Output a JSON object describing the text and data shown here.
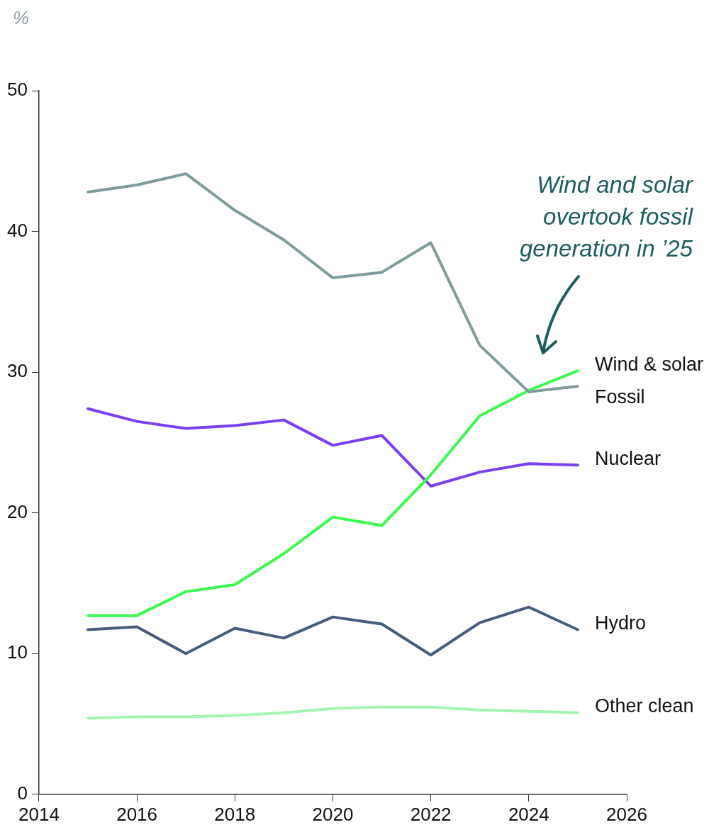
{
  "chart_data": {
    "type": "line",
    "ylabel": "%",
    "x": [
      2015,
      2016,
      2017,
      2018,
      2019,
      2020,
      2021,
      2022,
      2023,
      2024,
      2025
    ],
    "xlim": [
      2014,
      2026
    ],
    "xticks": [
      2014,
      2016,
      2018,
      2020,
      2022,
      2024,
      2026
    ],
    "ylim": [
      0,
      50
    ],
    "yticks": [
      0,
      10,
      20,
      30,
      40,
      50
    ],
    "marker": "none",
    "series": [
      {
        "name": "Fossil",
        "color": "#7f9c9c",
        "values": [
          42.8,
          43.3,
          44.1,
          41.5,
          39.4,
          36.7,
          37.1,
          39.2,
          31.9,
          28.6,
          29.0
        ]
      },
      {
        "name": "Wind & solar",
        "color": "#3cf850",
        "values": [
          12.7,
          12.7,
          14.4,
          14.9,
          17.1,
          19.7,
          19.1,
          22.7,
          26.9,
          28.7,
          30.1
        ]
      },
      {
        "name": "Nuclear",
        "color": "#7b3ff2",
        "values": [
          27.4,
          26.5,
          26.0,
          26.2,
          26.6,
          24.8,
          25.5,
          21.9,
          22.9,
          23.5,
          23.4
        ]
      },
      {
        "name": "Hydro",
        "color": "#475d7e",
        "values": [
          11.7,
          11.9,
          10.0,
          11.8,
          11.1,
          12.6,
          12.1,
          9.9,
          12.2,
          13.3,
          11.7
        ]
      },
      {
        "name": "Other clean",
        "color": "#a3f5b0",
        "values": [
          5.4,
          5.5,
          5.5,
          5.6,
          5.8,
          6.1,
          6.2,
          6.2,
          6.0,
          5.9,
          5.8
        ]
      }
    ],
    "annotations": [
      "Wind and solar overtook fossil generation in ’25"
    ]
  }
}
